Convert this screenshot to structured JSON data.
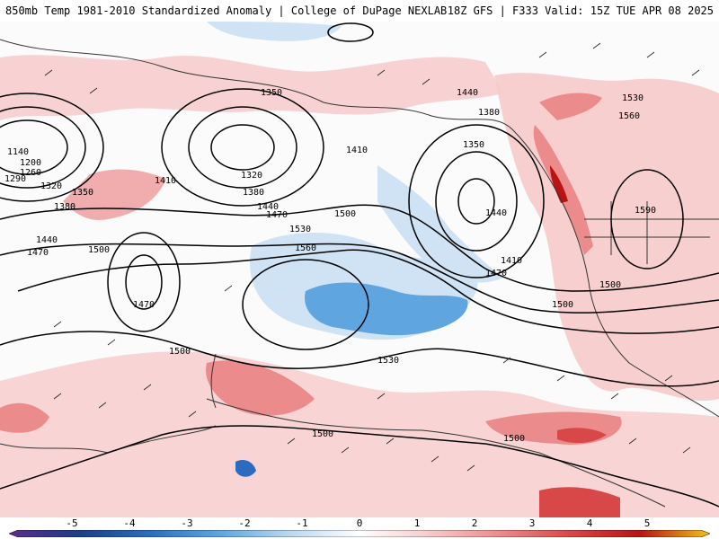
{
  "header": {
    "title": "850mb Temp 1981-2010 Standardized Anomaly | College of DuPage NEXLAB",
    "run": "18Z GFS | F333 Valid: 15Z TUE APR 08 2025"
  },
  "contour_labels": [
    "1350",
    "1140",
    "1200",
    "1260",
    "1290",
    "1320",
    "1350",
    "1380",
    "1440",
    "1410",
    "1470",
    "1500",
    "1320",
    "1380",
    "1440",
    "1470",
    "1500",
    "1530",
    "1560",
    "1410",
    "1440",
    "1380",
    "1350",
    "1440",
    "1410",
    "1470",
    "1530",
    "1560",
    "1590",
    "1500",
    "1500",
    "1470",
    "1500",
    "1530",
    "1500",
    "1500"
  ],
  "colorbar": {
    "ticks": [
      "-5",
      "-4",
      "-3",
      "-2",
      "-1",
      "0",
      "1",
      "2",
      "3",
      "4",
      "5"
    ],
    "colors": [
      "#5e2a8f",
      "#1c3f86",
      "#2b6cc0",
      "#5fa5e0",
      "#b9d8f2",
      "#ffffff",
      "#f7caca",
      "#ec8b8b",
      "#d94848",
      "#b81414",
      "#f0c419"
    ]
  },
  "legend_type": "standardized anomaly"
}
